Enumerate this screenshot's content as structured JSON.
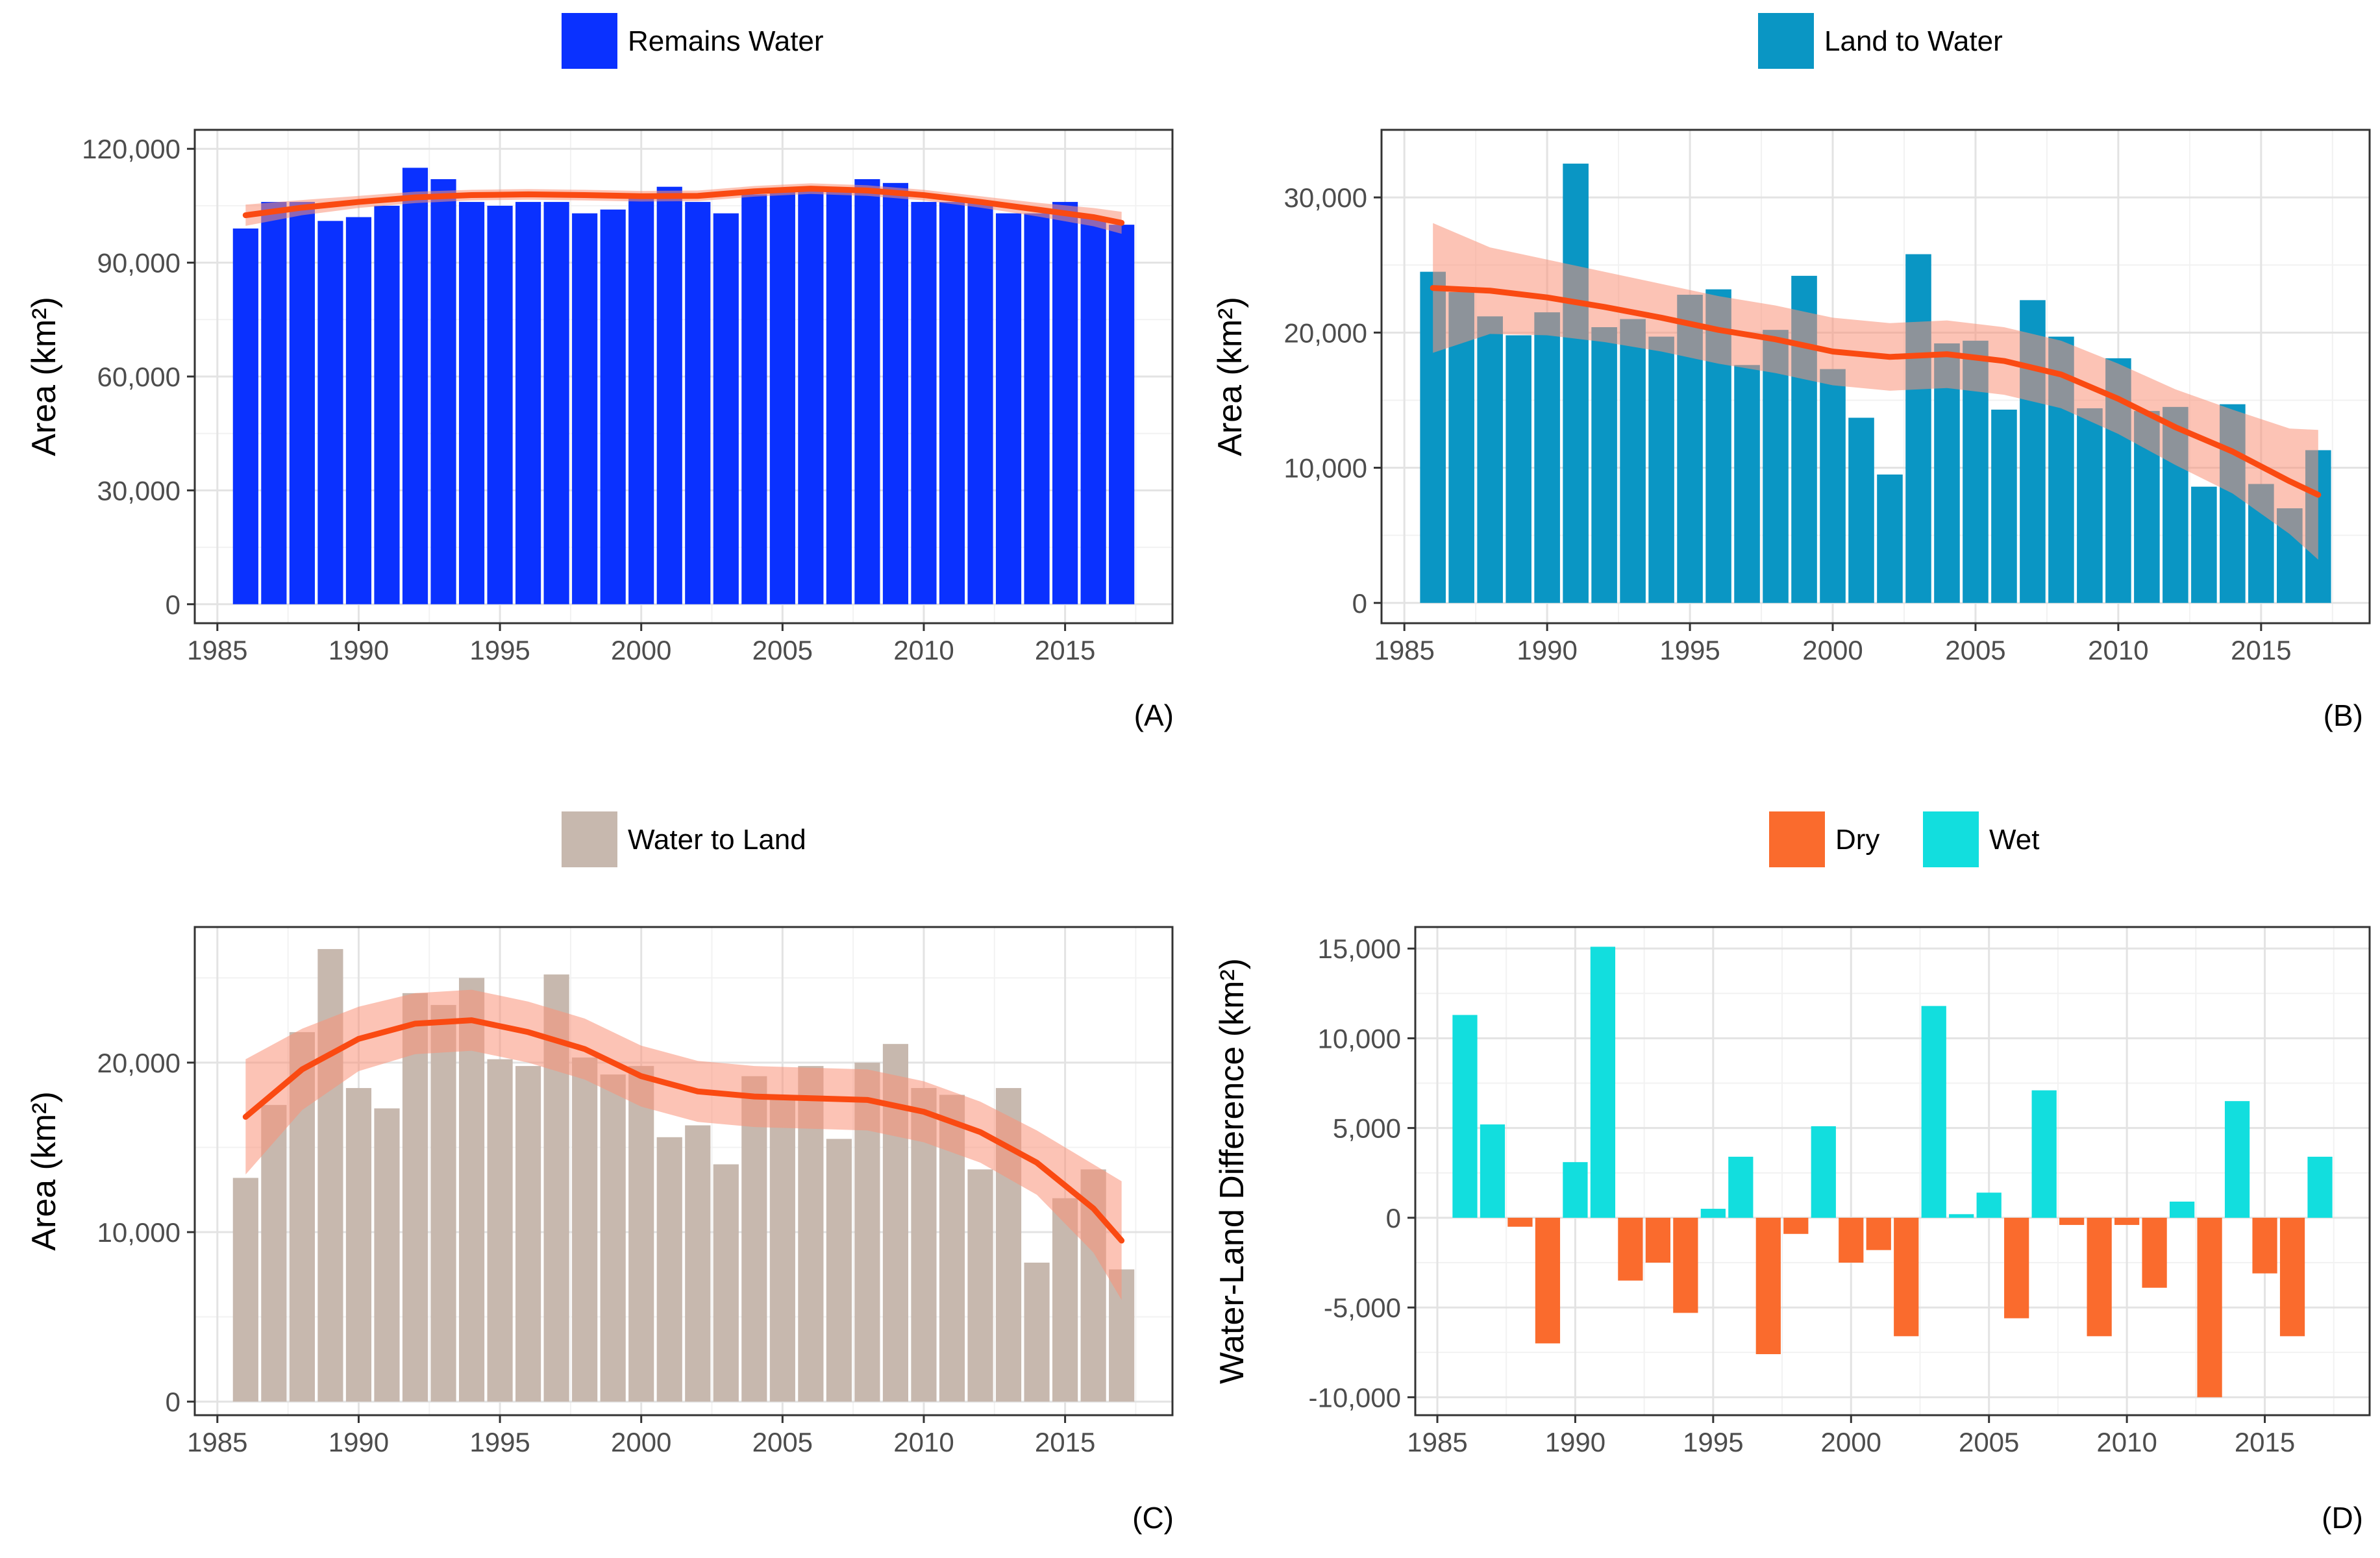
{
  "figure": {
    "panels": [
      "A",
      "B",
      "C",
      "D"
    ]
  },
  "colors": {
    "remains_water": "#0a31ff",
    "land_to_water": "#0a96c4",
    "water_to_land": "#c7b8ae",
    "dry": "#fa6b2d",
    "wet": "#12dede",
    "smooth_line": "#fa4a12",
    "ribbon": "#fa9278"
  },
  "chart_data": [
    {
      "panel": "A",
      "type": "bar",
      "legend": [
        {
          "label": "Remains Water",
          "color": "#0a31ff"
        }
      ],
      "legend_position": "top",
      "tag": "(A)",
      "ylabel": "Area (km²)",
      "xlabel": "",
      "xlim": [
        1984.2,
        2018.8
      ],
      "ylim": [
        -5000,
        125000
      ],
      "x_ticks": [
        1985,
        1990,
        1995,
        2000,
        2005,
        2010,
        2015
      ],
      "x_tick_labels": [
        "1985",
        "1990",
        "1995",
        "2000",
        "2005",
        "2010",
        "2015"
      ],
      "y_ticks": [
        0,
        30000,
        60000,
        90000,
        120000
      ],
      "y_tick_labels": [
        "0",
        "30,000",
        "60,000",
        "90,000",
        "120,000"
      ],
      "years": [
        1986,
        1987,
        1988,
        1989,
        1990,
        1991,
        1992,
        1993,
        1994,
        1995,
        1996,
        1997,
        1998,
        1999,
        2000,
        2001,
        2002,
        2003,
        2004,
        2005,
        2006,
        2007,
        2008,
        2009,
        2010,
        2011,
        2012,
        2013,
        2014,
        2015,
        2016,
        2017
      ],
      "values": [
        99000,
        106000,
        106000,
        101000,
        102000,
        105000,
        115000,
        112000,
        106000,
        105000,
        106000,
        106000,
        103000,
        104000,
        108000,
        110000,
        106000,
        103000,
        108000,
        109000,
        109000,
        109000,
        112000,
        111000,
        106000,
        106000,
        106000,
        103000,
        103000,
        106000,
        102000,
        100000
      ],
      "smooth": {
        "x": [
          1986,
          1988,
          1990,
          1992,
          1994,
          1996,
          1998,
          2000,
          2002,
          2004,
          2006,
          2008,
          2010,
          2012,
          2014,
          2016,
          2017
        ],
        "y": [
          102500,
          104500,
          106000,
          107200,
          107800,
          108000,
          107800,
          107500,
          107600,
          108800,
          109500,
          109000,
          107800,
          106000,
          104000,
          102000,
          100500
        ],
        "se": [
          2800,
          2000,
          1600,
          1500,
          1400,
          1400,
          1400,
          1400,
          1400,
          1400,
          1400,
          1400,
          1400,
          1500,
          1800,
          2400,
          2900
        ]
      }
    },
    {
      "panel": "B",
      "type": "bar",
      "legend": [
        {
          "label": "Land to Water",
          "color": "#0a96c4"
        }
      ],
      "legend_position": "top",
      "tag": "(B)",
      "ylabel": "Area (km²)",
      "xlabel": "",
      "xlim": [
        1984.2,
        2018.8
      ],
      "ylim": [
        -1500,
        35000
      ],
      "x_ticks": [
        1985,
        1990,
        1995,
        2000,
        2005,
        2010,
        2015
      ],
      "x_tick_labels": [
        "1985",
        "1990",
        "1995",
        "2000",
        "2005",
        "2010",
        "2015"
      ],
      "y_ticks": [
        0,
        10000,
        20000,
        30000
      ],
      "y_tick_labels": [
        "0",
        "10,000",
        "20,000",
        "30,000"
      ],
      "years": [
        1986,
        1987,
        1988,
        1989,
        1990,
        1991,
        1992,
        1993,
        1994,
        1995,
        1996,
        1997,
        1998,
        1999,
        2000,
        2001,
        2002,
        2003,
        2004,
        2005,
        2006,
        2007,
        2008,
        2009,
        2010,
        2011,
        2012,
        2013,
        2014,
        2015,
        2016,
        2017
      ],
      "values": [
        24500,
        23000,
        21200,
        19800,
        21500,
        32500,
        20400,
        21000,
        19700,
        22800,
        23200,
        17600,
        20200,
        24200,
        17300,
        13700,
        9500,
        25800,
        19200,
        19400,
        14300,
        22400,
        19700,
        14400,
        18100,
        14200,
        14500,
        8600,
        14700,
        8800,
        7000,
        11300
      ],
      "smooth": {
        "x": [
          1986,
          1988,
          1990,
          1992,
          1994,
          1996,
          1998,
          2000,
          2002,
          2004,
          2006,
          2008,
          2010,
          2012,
          2014,
          2016,
          2017
        ],
        "y": [
          23300,
          23100,
          22600,
          21900,
          21100,
          20200,
          19500,
          18600,
          18200,
          18400,
          17900,
          16900,
          15100,
          13000,
          11200,
          9000,
          8000
        ],
        "se": [
          4800,
          3200,
          2800,
          2600,
          2500,
          2500,
          2500,
          2500,
          2500,
          2500,
          2500,
          2500,
          2600,
          2800,
          3100,
          3900,
          4800
        ]
      }
    },
    {
      "panel": "C",
      "type": "bar",
      "legend": [
        {
          "label": "Water to Land",
          "color": "#c7b8ae"
        }
      ],
      "legend_position": "top",
      "tag": "(C)",
      "ylabel": "Area (km²)",
      "xlabel": "",
      "xlim": [
        1984.2,
        2018.8
      ],
      "ylim": [
        -800,
        28000
      ],
      "x_ticks": [
        1985,
        1990,
        1995,
        2000,
        2005,
        2010,
        2015
      ],
      "x_tick_labels": [
        "1985",
        "1990",
        "1995",
        "2000",
        "2005",
        "2010",
        "2015"
      ],
      "y_ticks": [
        0,
        10000,
        20000
      ],
      "y_tick_labels": [
        "0",
        "10,000",
        "20,000"
      ],
      "years": [
        1986,
        1987,
        1988,
        1989,
        1990,
        1991,
        1992,
        1993,
        1994,
        1995,
        1996,
        1997,
        1998,
        1999,
        2000,
        2001,
        2002,
        2003,
        2004,
        2005,
        2006,
        2007,
        2008,
        2009,
        2010,
        2011,
        2012,
        2013,
        2014,
        2015,
        2016,
        2017
      ],
      "values": [
        13200,
        17500,
        21800,
        26700,
        18500,
        17300,
        24100,
        23400,
        25000,
        20200,
        19800,
        25200,
        20300,
        19300,
        19800,
        15600,
        16300,
        14000,
        19200,
        17800,
        19800,
        15500,
        20000,
        21100,
        18500,
        18100,
        13700,
        18500,
        8200,
        12000,
        13700,
        7800
      ],
      "smooth": {
        "x": [
          1986,
          1988,
          1990,
          1992,
          1994,
          1996,
          1998,
          2000,
          2002,
          2004,
          2006,
          2008,
          2010,
          2012,
          2014,
          2016,
          2017
        ],
        "y": [
          16800,
          19600,
          21400,
          22300,
          22500,
          21800,
          20800,
          19200,
          18300,
          18000,
          17900,
          17800,
          17100,
          15900,
          14100,
          11400,
          9500
        ],
        "se": [
          3400,
          2400,
          1900,
          1800,
          1800,
          1800,
          1800,
          1800,
          1800,
          1800,
          1800,
          1800,
          1800,
          1800,
          1900,
          2600,
          3500
        ]
      }
    },
    {
      "panel": "D",
      "type": "bar",
      "legend": [
        {
          "label": "Dry",
          "color": "#fa6b2d"
        },
        {
          "label": "Wet",
          "color": "#12dede"
        }
      ],
      "legend_position": "top",
      "tag": "(D)",
      "ylabel": "Water-Land Difference (km²)",
      "xlabel": "",
      "xlim": [
        1984.2,
        2018.8
      ],
      "ylim": [
        -11000,
        16200
      ],
      "x_ticks": [
        1985,
        1990,
        1995,
        2000,
        2005,
        2010,
        2015
      ],
      "x_tick_labels": [
        "1985",
        "1990",
        "1995",
        "2000",
        "2005",
        "2010",
        "2015"
      ],
      "y_ticks": [
        -10000,
        -5000,
        0,
        5000,
        10000,
        15000
      ],
      "y_tick_labels": [
        "-10,000",
        "-5,000",
        "0",
        "5,000",
        "10,000",
        "15,000"
      ],
      "years": [
        1986,
        1987,
        1988,
        1989,
        1990,
        1991,
        1992,
        1993,
        1994,
        1995,
        1996,
        1997,
        1998,
        1999,
        2000,
        2001,
        2002,
        2003,
        2004,
        2005,
        2006,
        2007,
        2008,
        2009,
        2010,
        2011,
        2012,
        2013,
        2014,
        2015,
        2016,
        2017
      ],
      "values": [
        11300,
        5200,
        -500,
        -7000,
        3100,
        15100,
        -3500,
        -2500,
        -5300,
        500,
        3400,
        -7600,
        -900,
        5100,
        -2500,
        -1800,
        -6600,
        11800,
        200,
        1400,
        -5600,
        7100,
        -400,
        -6600,
        -400,
        -3900,
        900,
        -10000,
        6500,
        -3100,
        -6600,
        3400
      ]
    }
  ]
}
